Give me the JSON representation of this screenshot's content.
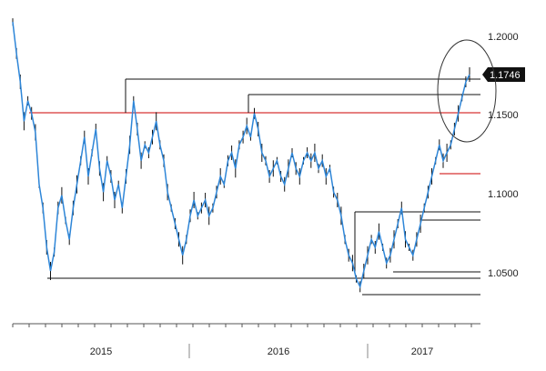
{
  "chart_data": {
    "type": "line",
    "title": "",
    "xlabel": "",
    "ylabel": "",
    "x_tick_labels": [
      "2015",
      "2016",
      "2017"
    ],
    "y_tick_labels": [
      "1.2000",
      "1.1500",
      "1.1000",
      "1.0500"
    ],
    "y_ticks": [
      1.2,
      1.15,
      1.1,
      1.05
    ],
    "ylim": [
      1.015,
      1.235
    ],
    "last_value_label": "1.1746",
    "last_value": 1.1746,
    "grid": false,
    "legend": "none",
    "series": [
      {
        "values": [
          1.208,
          1.188,
          1.17,
          1.145,
          1.158,
          1.15,
          1.138,
          1.105,
          1.09,
          1.065,
          1.05,
          1.062,
          1.09,
          1.098,
          1.082,
          1.07,
          1.09,
          1.105,
          1.12,
          1.135,
          1.11,
          1.125,
          1.14,
          1.115,
          1.1,
          1.12,
          1.11,
          1.095,
          1.105,
          1.09,
          1.11,
          1.13,
          1.158,
          1.14,
          1.12,
          1.13,
          1.125,
          1.135,
          1.145,
          1.13,
          1.12,
          1.1,
          1.09,
          1.08,
          1.07,
          1.06,
          1.07,
          1.085,
          1.095,
          1.085,
          1.09,
          1.095,
          1.085,
          1.09,
          1.1,
          1.11,
          1.105,
          1.12,
          1.125,
          1.115,
          1.13,
          1.135,
          1.142,
          1.135,
          1.15,
          1.14,
          1.125,
          1.12,
          1.11,
          1.115,
          1.12,
          1.11,
          1.105,
          1.115,
          1.125,
          1.115,
          1.11,
          1.12,
          1.125,
          1.12,
          1.125,
          1.115,
          1.12,
          1.11,
          1.115,
          1.1,
          1.095,
          1.085,
          1.07,
          1.06,
          1.055,
          1.045,
          1.04,
          1.05,
          1.06,
          1.07,
          1.065,
          1.075,
          1.065,
          1.055,
          1.06,
          1.07,
          1.08,
          1.09,
          1.07,
          1.065,
          1.06,
          1.07,
          1.08,
          1.09,
          1.1,
          1.11,
          1.12,
          1.13,
          1.12,
          1.125,
          1.13,
          1.14,
          1.15,
          1.16,
          1.17,
          1.1746
        ]
      }
    ]
  }
}
